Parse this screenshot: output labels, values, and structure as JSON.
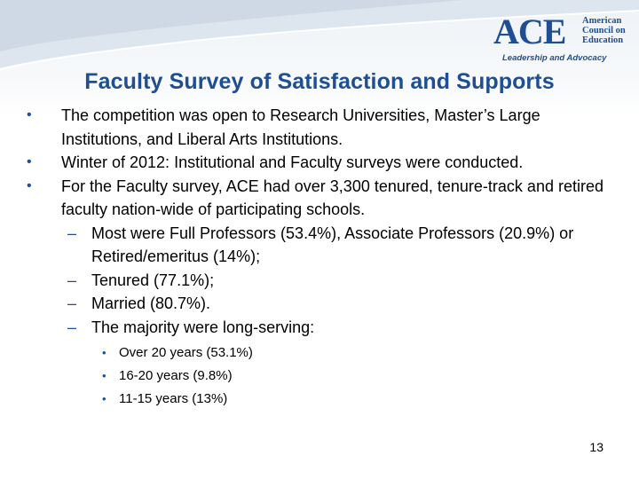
{
  "logo": {
    "mark": "ACE",
    "org_lines": [
      "American",
      "Council on",
      "Education"
    ],
    "tagline": "Leadership and Advocacy"
  },
  "slide": {
    "title": "Faculty Survey of Satisfaction and Supports",
    "bullets": [
      "The competition was open to Research Universities, Master’s Large Institutions, and Liberal Arts Institutions.",
      "Winter of 2012: Institutional and Faculty surveys were conducted.",
      "For the Faculty survey, ACE had over 3,300 tenured, tenure-track and retired faculty nation-wide of participating schools."
    ],
    "sub_bullets": [
      "Most were Full Professors (53.4%), Associate Professors (20.9%) or Retired/emeritus (14%);",
      "Tenured (77.1%);",
      "Married (80.7%).",
      "The majority were long-serving:"
    ],
    "sub_sub_bullets": [
      "Over 20 years (53.1%)",
      "16-20 years (9.8%)",
      "11-15 years (13%)"
    ],
    "bullet_glyph": "•",
    "dash_glyph": "–",
    "page_number": "13"
  },
  "colors": {
    "brand_blue": "#1f4e93",
    "text": "#000000",
    "background": "#ffffff"
  }
}
